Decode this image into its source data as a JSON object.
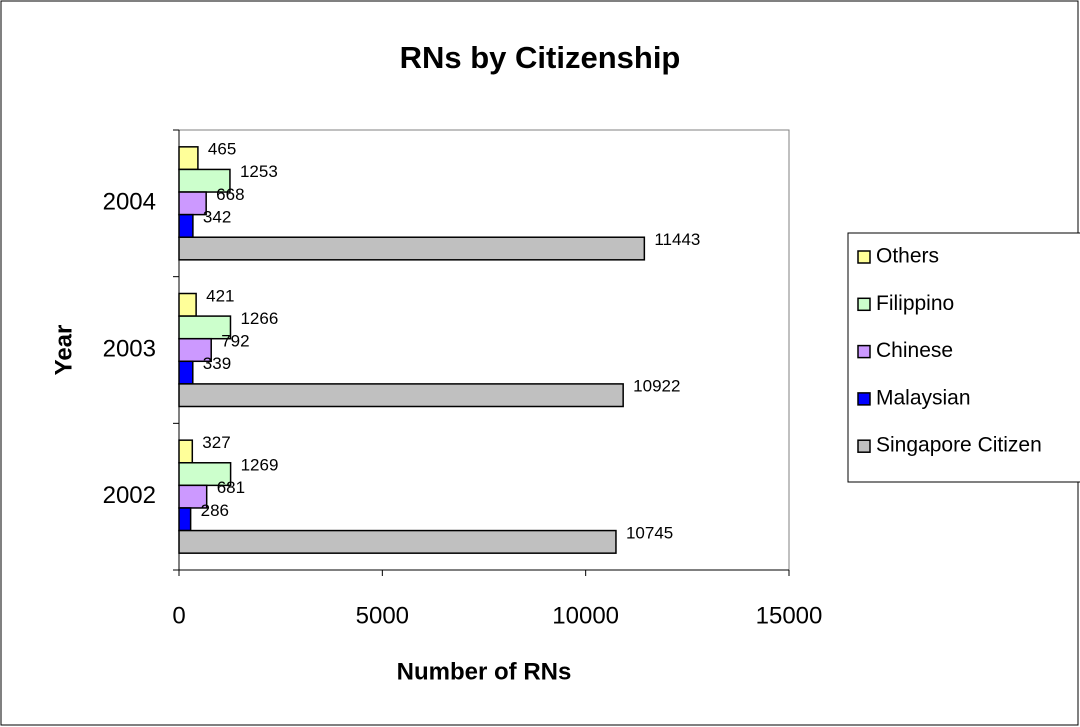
{
  "chart_data": {
    "type": "bar",
    "orientation": "horizontal",
    "title": "RNs by Citizenship",
    "x_label": "Number of RNs",
    "y_label": "Year",
    "categories": [
      "2002",
      "2003",
      "2004"
    ],
    "series": [
      {
        "name": "Others",
        "color": "#ffff99",
        "values": [
          327,
          421,
          465
        ]
      },
      {
        "name": "Filippino",
        "color": "#ccffcc",
        "values": [
          1269,
          1266,
          1253
        ]
      },
      {
        "name": "Chinese",
        "color": "#cc99ff",
        "values": [
          681,
          792,
          668
        ]
      },
      {
        "name": "Malaysian",
        "color": "#0000ff",
        "values": [
          286,
          339,
          342
        ]
      },
      {
        "name": "Singapore Citizen",
        "color": "#c0c0c0",
        "values": [
          10745,
          10922,
          11443
        ]
      }
    ],
    "xlim": [
      0,
      15000
    ],
    "xticks": [
      0,
      5000,
      10000,
      15000
    ],
    "legend": "right",
    "grid": false
  }
}
